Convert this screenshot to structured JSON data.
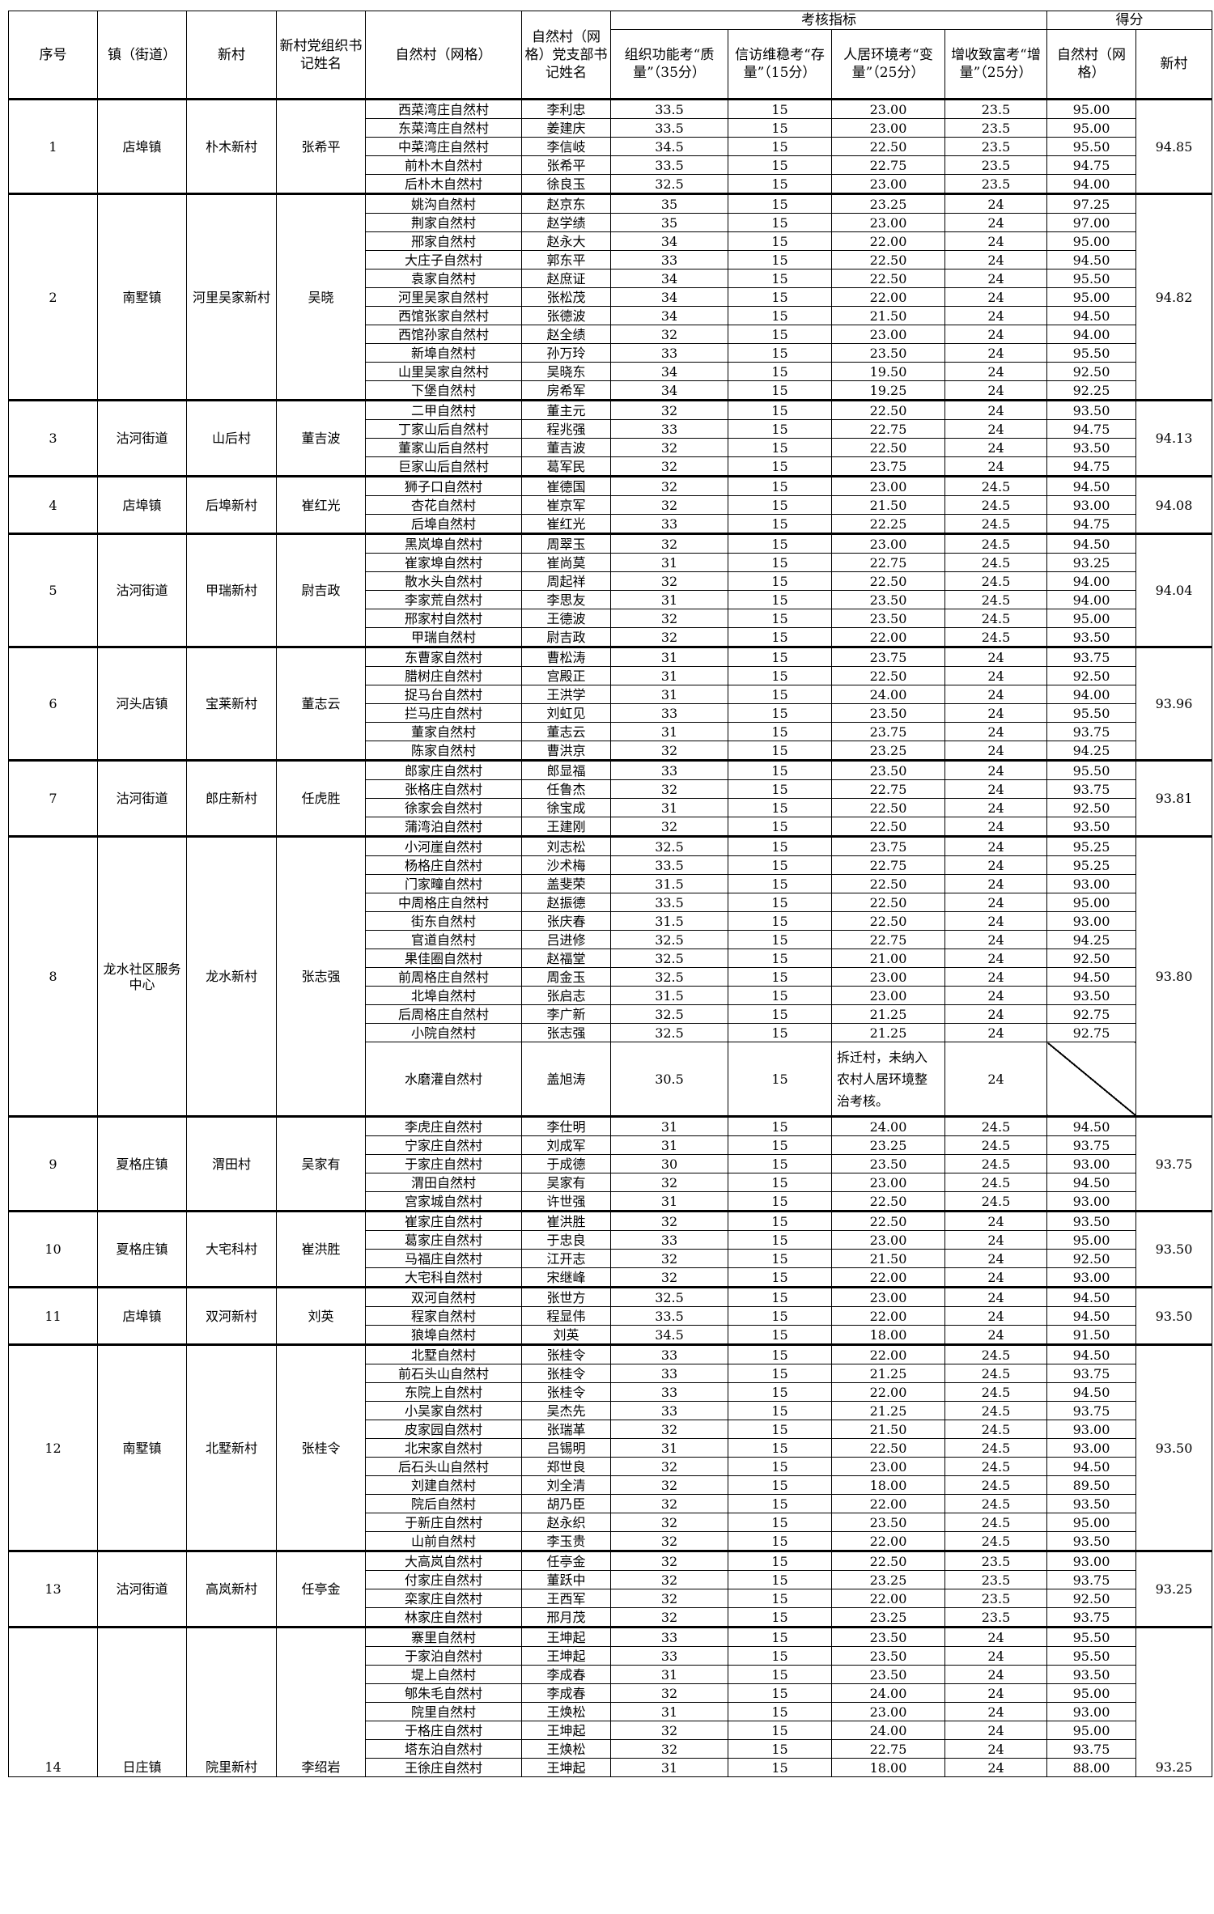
{
  "header": {
    "seq": "序号",
    "town": "镇（街道）",
    "new_village": "新村",
    "new_secretary": "新村党组织书记姓名",
    "natural_village": "自然村（网格）",
    "nv_secretary": "自然村（网格）党支部书记姓名",
    "indicators": "考核指标",
    "ind_quality": "组织功能考“质量”（35分）",
    "ind_stock": "信访维稳考“存量”（15分）",
    "ind_change": "人居环境考“变量”（25分）",
    "ind_increase": "增收致富考“增量”（25分）",
    "score": "得分",
    "score_nv": "自然村（网格）",
    "score_new": "新村"
  },
  "groups": [
    {
      "seq": "1",
      "town": "店埠镇",
      "new_village": "朴木新村",
      "secretary": "张希平",
      "score": "94.85",
      "villages": [
        [
          "西菜湾庄自然村",
          "李利忠",
          "33.5",
          "15",
          "23.00",
          "23.5",
          "95.00"
        ],
        [
          "东菜湾庄自然村",
          "姜建庆",
          "33.5",
          "15",
          "23.00",
          "23.5",
          "95.00"
        ],
        [
          "中菜湾庄自然村",
          "李信岐",
          "34.5",
          "15",
          "22.50",
          "23.5",
          "95.50"
        ],
        [
          "前朴木自然村",
          "张希平",
          "33.5",
          "15",
          "22.75",
          "23.5",
          "94.75"
        ],
        [
          "后朴木自然村",
          "徐良玉",
          "32.5",
          "15",
          "23.00",
          "23.5",
          "94.00"
        ]
      ]
    },
    {
      "seq": "2",
      "town": "南墅镇",
      "new_village": "河里吴家新村",
      "secretary": "吴晓",
      "score": "94.82",
      "villages": [
        [
          "姚沟自然村",
          "赵京东",
          "35",
          "15",
          "23.25",
          "24",
          "97.25"
        ],
        [
          "荆家自然村",
          "赵学绩",
          "35",
          "15",
          "23.00",
          "24",
          "97.00"
        ],
        [
          "郉家自然村",
          "赵永大",
          "34",
          "15",
          "22.00",
          "24",
          "95.00"
        ],
        [
          "大庄子自然村",
          "郭东平",
          "33",
          "15",
          "22.50",
          "24",
          "94.50"
        ],
        [
          "袁家自然村",
          "赵庶证",
          "34",
          "15",
          "22.50",
          "24",
          "95.50"
        ],
        [
          "河里吴家自然村",
          "张松茂",
          "34",
          "15",
          "22.00",
          "24",
          "95.00"
        ],
        [
          "西馆张家自然村",
          "张德波",
          "34",
          "15",
          "21.50",
          "24",
          "94.50"
        ],
        [
          "西馆孙家自然村",
          "赵全绩",
          "32",
          "15",
          "23.00",
          "24",
          "94.00"
        ],
        [
          "新埠自然村",
          "孙万玲",
          "33",
          "15",
          "23.50",
          "24",
          "95.50"
        ],
        [
          "山里吴家自然村",
          "吴晓东",
          "34",
          "15",
          "19.50",
          "24",
          "92.50"
        ],
        [
          "下堡自然村",
          "房希军",
          "34",
          "15",
          "19.25",
          "24",
          "92.25"
        ]
      ]
    },
    {
      "seq": "3",
      "town": "沽河街道",
      "new_village": "山后村",
      "secretary": "董吉波",
      "score": "94.13",
      "villages": [
        [
          "二甲自然村",
          "董主元",
          "32",
          "15",
          "22.50",
          "24",
          "93.50"
        ],
        [
          "丁家山后自然村",
          "程兆强",
          "33",
          "15",
          "22.75",
          "24",
          "94.75"
        ],
        [
          "董家山后自然村",
          "董吉波",
          "32",
          "15",
          "22.50",
          "24",
          "93.50"
        ],
        [
          "巨家山后自然村",
          "葛军民",
          "32",
          "15",
          "23.75",
          "24",
          "94.75"
        ]
      ]
    },
    {
      "seq": "4",
      "town": "店埠镇",
      "new_village": "后埠新村",
      "secretary": "崔红光",
      "score": "94.08",
      "villages": [
        [
          "狮子口自然村",
          "崔德国",
          "32",
          "15",
          "23.00",
          "24.5",
          "94.50"
        ],
        [
          "杏花自然村",
          "崔京军",
          "32",
          "15",
          "21.50",
          "24.5",
          "93.00"
        ],
        [
          "后埠自然村",
          "崔红光",
          "33",
          "15",
          "22.25",
          "24.5",
          "94.75"
        ]
      ]
    },
    {
      "seq": "5",
      "town": "沽河街道",
      "new_village": "甲瑞新村",
      "secretary": "尉吉政",
      "score": "94.04",
      "villages": [
        [
          "黑岚埠自然村",
          "周翠玉",
          "32",
          "15",
          "23.00",
          "24.5",
          "94.50"
        ],
        [
          "崔家埠自然村",
          "崔尚莫",
          "31",
          "15",
          "22.75",
          "24.5",
          "93.25"
        ],
        [
          "散水头自然村",
          "周起祥",
          "32",
          "15",
          "22.50",
          "24.5",
          "94.00"
        ],
        [
          "李家荒自然村",
          "李思友",
          "31",
          "15",
          "23.50",
          "24.5",
          "94.00"
        ],
        [
          "邢家村自然村",
          "王德波",
          "32",
          "15",
          "23.50",
          "24.5",
          "95.00"
        ],
        [
          "甲瑞自然村",
          "尉吉政",
          "32",
          "15",
          "22.00",
          "24.5",
          "93.50"
        ]
      ]
    },
    {
      "seq": "6",
      "town": "河头店镇",
      "new_village": "宝莱新村",
      "secretary": "董志云",
      "score": "93.96",
      "villages": [
        [
          "东曹家自然村",
          "曹松涛",
          "31",
          "15",
          "23.75",
          "24",
          "93.75"
        ],
        [
          "腊树庄自然村",
          "宫殿正",
          "31",
          "15",
          "22.50",
          "24",
          "92.50"
        ],
        [
          "捉马台自然村",
          "王洪学",
          "31",
          "15",
          "24.00",
          "24",
          "94.00"
        ],
        [
          "拦马庄自然村",
          "刘虹见",
          "33",
          "15",
          "23.50",
          "24",
          "95.50"
        ],
        [
          "董家自然村",
          "董志云",
          "31",
          "15",
          "23.75",
          "24",
          "93.75"
        ],
        [
          "陈家自然村",
          "曹洪京",
          "32",
          "15",
          "23.25",
          "24",
          "94.25"
        ]
      ]
    },
    {
      "seq": "7",
      "town": "沽河街道",
      "new_village": "郎庄新村",
      "secretary": "任虎胜",
      "score": "93.81",
      "villages": [
        [
          "郎家庄自然村",
          "郎显福",
          "33",
          "15",
          "23.50",
          "24",
          "95.50"
        ],
        [
          "张格庄自然村",
          "任鲁杰",
          "32",
          "15",
          "22.75",
          "24",
          "93.75"
        ],
        [
          "徐家会自然村",
          "徐宝成",
          "31",
          "15",
          "22.50",
          "24",
          "92.50"
        ],
        [
          "蒲湾泊自然村",
          "王建刚",
          "32",
          "15",
          "22.50",
          "24",
          "93.50"
        ]
      ]
    },
    {
      "seq": "8",
      "town": "龙水社区服务中心",
      "new_village": "龙水新村",
      "secretary": "张志强",
      "score": "93.80",
      "villages": [
        [
          "小河崖自然村",
          "刘志松",
          "32.5",
          "15",
          "23.75",
          "24",
          "95.25"
        ],
        [
          "杨格庄自然村",
          "沙术梅",
          "33.5",
          "15",
          "22.75",
          "24",
          "95.25"
        ],
        [
          "门家疃自然村",
          "盖斐荣",
          "31.5",
          "15",
          "22.50",
          "24",
          "93.00"
        ],
        [
          "中周格庄自然村",
          "赵振德",
          "33.5",
          "15",
          "22.50",
          "24",
          "95.00"
        ],
        [
          "街东自然村",
          "张庆春",
          "31.5",
          "15",
          "22.50",
          "24",
          "93.00"
        ],
        [
          "官道自然村",
          "吕进修",
          "32.5",
          "15",
          "22.75",
          "24",
          "94.25"
        ],
        [
          "果佳圈自然村",
          "赵福堂",
          "32.5",
          "15",
          "21.00",
          "24",
          "92.50"
        ],
        [
          "前周格庄自然村",
          "周金玉",
          "32.5",
          "15",
          "23.00",
          "24",
          "94.50"
        ],
        [
          "北埠自然村",
          "张启志",
          "31.5",
          "15",
          "23.00",
          "24",
          "93.50"
        ],
        [
          "后周格庄自然村",
          "李广新",
          "32.5",
          "15",
          "21.25",
          "24",
          "92.75"
        ],
        [
          "小院自然村",
          "张志强",
          "32.5",
          "15",
          "21.25",
          "24",
          "92.75"
        ],
        [
          "水磨灌自然村",
          "盖旭涛",
          "30.5",
          "15",
          "拆迁村，未纳入农村人居环境整治考核。",
          "24",
          ""
        ]
      ]
    },
    {
      "seq": "9",
      "town": "夏格庄镇",
      "new_village": "渭田村",
      "secretary": "吴家有",
      "score": "93.75",
      "villages": [
        [
          "李虎庄自然村",
          "李仕明",
          "31",
          "15",
          "24.00",
          "24.5",
          "94.50"
        ],
        [
          "宁家庄自然村",
          "刘成军",
          "31",
          "15",
          "23.25",
          "24.5",
          "93.75"
        ],
        [
          "于家庄自然村",
          "于成德",
          "30",
          "15",
          "23.50",
          "24.5",
          "93.00"
        ],
        [
          "渭田自然村",
          "吴家有",
          "32",
          "15",
          "23.00",
          "24.5",
          "94.50"
        ],
        [
          "宫家城自然村",
          "许世强",
          "31",
          "15",
          "22.50",
          "24.5",
          "93.00"
        ]
      ]
    },
    {
      "seq": "10",
      "town": "夏格庄镇",
      "new_village": "大宅科村",
      "secretary": "崔洪胜",
      "score": "93.50",
      "villages": [
        [
          "崔家庄自然村",
          "崔洪胜",
          "32",
          "15",
          "22.50",
          "24",
          "93.50"
        ],
        [
          "葛家庄自然村",
          "于忠良",
          "33",
          "15",
          "23.00",
          "24",
          "95.00"
        ],
        [
          "马福庄自然村",
          "江开志",
          "32",
          "15",
          "21.50",
          "24",
          "92.50"
        ],
        [
          "大宅科自然村",
          "宋继峰",
          "32",
          "15",
          "22.00",
          "24",
          "93.00"
        ]
      ]
    },
    {
      "seq": "11",
      "town": "店埠镇",
      "new_village": "双河新村",
      "secretary": "刘英",
      "score": "93.50",
      "villages": [
        [
          "双河自然村",
          "张世方",
          "32.5",
          "15",
          "23.00",
          "24",
          "94.50"
        ],
        [
          "程家自然村",
          "程显伟",
          "33.5",
          "15",
          "22.00",
          "24",
          "94.50"
        ],
        [
          "狼埠自然村",
          "刘英",
          "34.5",
          "15",
          "18.00",
          "24",
          "91.50"
        ]
      ]
    },
    {
      "seq": "12",
      "town": "南墅镇",
      "new_village": "北墅新村",
      "secretary": "张桂令",
      "score": "93.50",
      "villages": [
        [
          "北墅自然村",
          "张桂令",
          "33",
          "15",
          "22.00",
          "24.5",
          "94.50"
        ],
        [
          "前石头山自然村",
          "张桂令",
          "33",
          "15",
          "21.25",
          "24.5",
          "93.75"
        ],
        [
          "东院上自然村",
          "张桂令",
          "33",
          "15",
          "22.00",
          "24.5",
          "94.50"
        ],
        [
          "小吴家自然村",
          "吴杰先",
          "33",
          "15",
          "21.25",
          "24.5",
          "93.75"
        ],
        [
          "皮家园自然村",
          "张瑞革",
          "32",
          "15",
          "21.50",
          "24.5",
          "93.00"
        ],
        [
          "北宋家自然村",
          "吕锡明",
          "31",
          "15",
          "22.50",
          "24.5",
          "93.00"
        ],
        [
          "后石头山自然村",
          "郑世良",
          "32",
          "15",
          "23.00",
          "24.5",
          "94.50"
        ],
        [
          "刘建自然村",
          "刘全清",
          "32",
          "15",
          "18.00",
          "24.5",
          "89.50"
        ],
        [
          "院后自然村",
          "胡乃臣",
          "32",
          "15",
          "22.00",
          "24.5",
          "93.50"
        ],
        [
          "于新庄自然村",
          "赵永织",
          "32",
          "15",
          "23.50",
          "24.5",
          "95.00"
        ],
        [
          "山前自然村",
          "李玉贵",
          "32",
          "15",
          "22.00",
          "24.5",
          "93.50"
        ]
      ]
    },
    {
      "seq": "13",
      "town": "沽河街道",
      "new_village": "高岚新村",
      "secretary": "任亭金",
      "score": "93.25",
      "villages": [
        [
          "大高岚自然村",
          "任亭金",
          "32",
          "15",
          "22.50",
          "23.5",
          "93.00"
        ],
        [
          "付家庄自然村",
          "董跃中",
          "32",
          "15",
          "23.25",
          "23.5",
          "93.75"
        ],
        [
          "栾家庄自然村",
          "王西军",
          "32",
          "15",
          "22.00",
          "23.5",
          "92.50"
        ],
        [
          "林家庄自然村",
          "邢月茂",
          "32",
          "15",
          "23.25",
          "23.5",
          "93.75"
        ]
      ]
    },
    {
      "seq": "14",
      "town": "日庄镇",
      "new_village": "院里新村",
      "secretary": "李绍岩",
      "score": "93.25",
      "cut_off": true,
      "villages": [
        [
          "寨里自然村",
          "王坤起",
          "33",
          "15",
          "23.50",
          "24",
          "95.50"
        ],
        [
          "于家泊自然村",
          "王坤起",
          "33",
          "15",
          "23.50",
          "24",
          "95.50"
        ],
        [
          "堤上自然村",
          "李成春",
          "31",
          "15",
          "23.50",
          "24",
          "93.50"
        ],
        [
          "郇朱毛自然村",
          "李成春",
          "32",
          "15",
          "24.00",
          "24",
          "95.00"
        ],
        [
          "院里自然村",
          "王焕松",
          "31",
          "15",
          "23.00",
          "24",
          "93.00"
        ],
        [
          "于格庄自然村",
          "王坤起",
          "32",
          "15",
          "24.00",
          "24",
          "95.00"
        ],
        [
          "塔东泊自然村",
          "王焕松",
          "32",
          "15",
          "22.75",
          "24",
          "93.75"
        ],
        [
          "王徐庄自然村",
          "王坤起",
          "31",
          "15",
          "18.00",
          "24",
          "88.00"
        ]
      ]
    }
  ]
}
